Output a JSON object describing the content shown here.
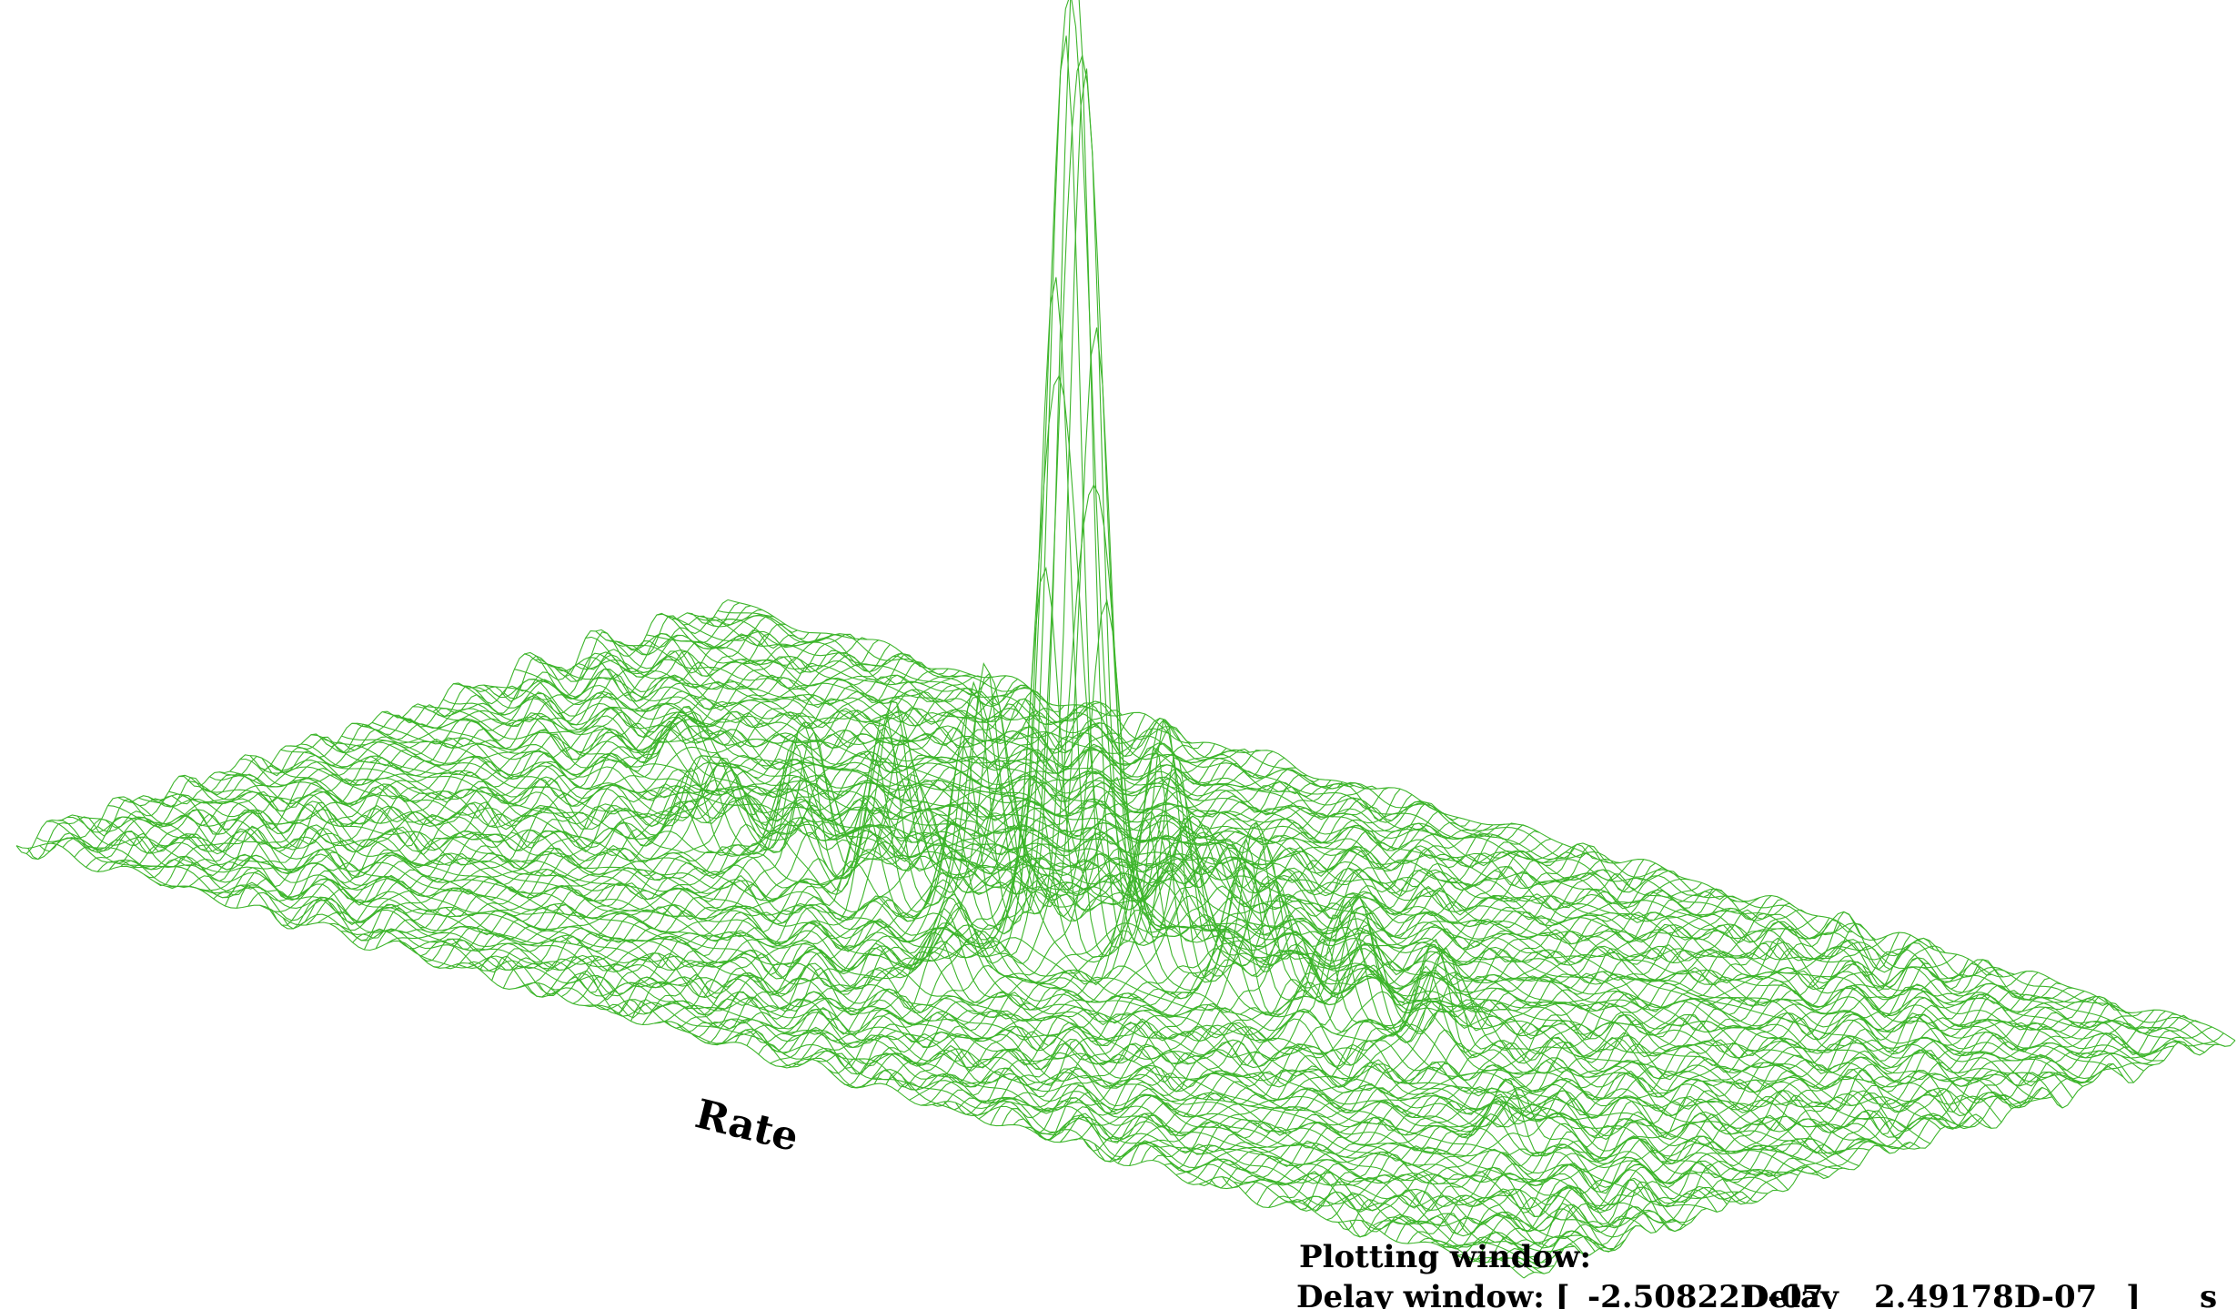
{
  "chart_data": {
    "type": "surface",
    "axis_labels": {
      "rate": "Rate",
      "delay": "Delay"
    },
    "info": {
      "heading": "Plotting window:",
      "delay_window_label": "Delay window: [",
      "delay_window_min": "-2.50822D-07",
      "delay_window_max": "2.49178D-07",
      "delay_window_close": "]",
      "delay_window_unit": "s"
    },
    "peaks": [
      {
        "delay": 0.48,
        "rate": 0.47,
        "amplitude": 1.0,
        "width": 0.01
      },
      {
        "delay": 0.42,
        "rate": 0.47,
        "amplitude": 0.25,
        "width": 0.009
      },
      {
        "delay": 0.54,
        "rate": 0.47,
        "amplitude": 0.24,
        "width": 0.009
      },
      {
        "delay": 0.36,
        "rate": 0.47,
        "amplitude": 0.19,
        "width": 0.009
      },
      {
        "delay": 0.6,
        "rate": 0.47,
        "amplitude": 0.17,
        "width": 0.009
      },
      {
        "delay": 0.3,
        "rate": 0.47,
        "amplitude": 0.13,
        "width": 0.009
      },
      {
        "delay": 0.66,
        "rate": 0.47,
        "amplitude": 0.12,
        "width": 0.009
      },
      {
        "delay": 0.24,
        "rate": 0.47,
        "amplitude": 0.09,
        "width": 0.009
      },
      {
        "delay": 0.72,
        "rate": 0.47,
        "amplitude": 0.09,
        "width": 0.009
      },
      {
        "delay": 0.48,
        "rate": 0.3,
        "amplitude": 0.08,
        "width": 0.01
      },
      {
        "delay": 0.48,
        "rate": 0.64,
        "amplitude": 0.08,
        "width": 0.01
      },
      {
        "delay": 0.85,
        "rate": 0.3,
        "amplitude": 0.05,
        "width": 0.008
      },
      {
        "delay": 0.15,
        "rate": 0.62,
        "amplitude": 0.05,
        "width": 0.008
      }
    ],
    "noise_level": 0.02,
    "grid_on": true,
    "colors": {
      "mesh": "#3db52b",
      "text": "#000000"
    }
  }
}
